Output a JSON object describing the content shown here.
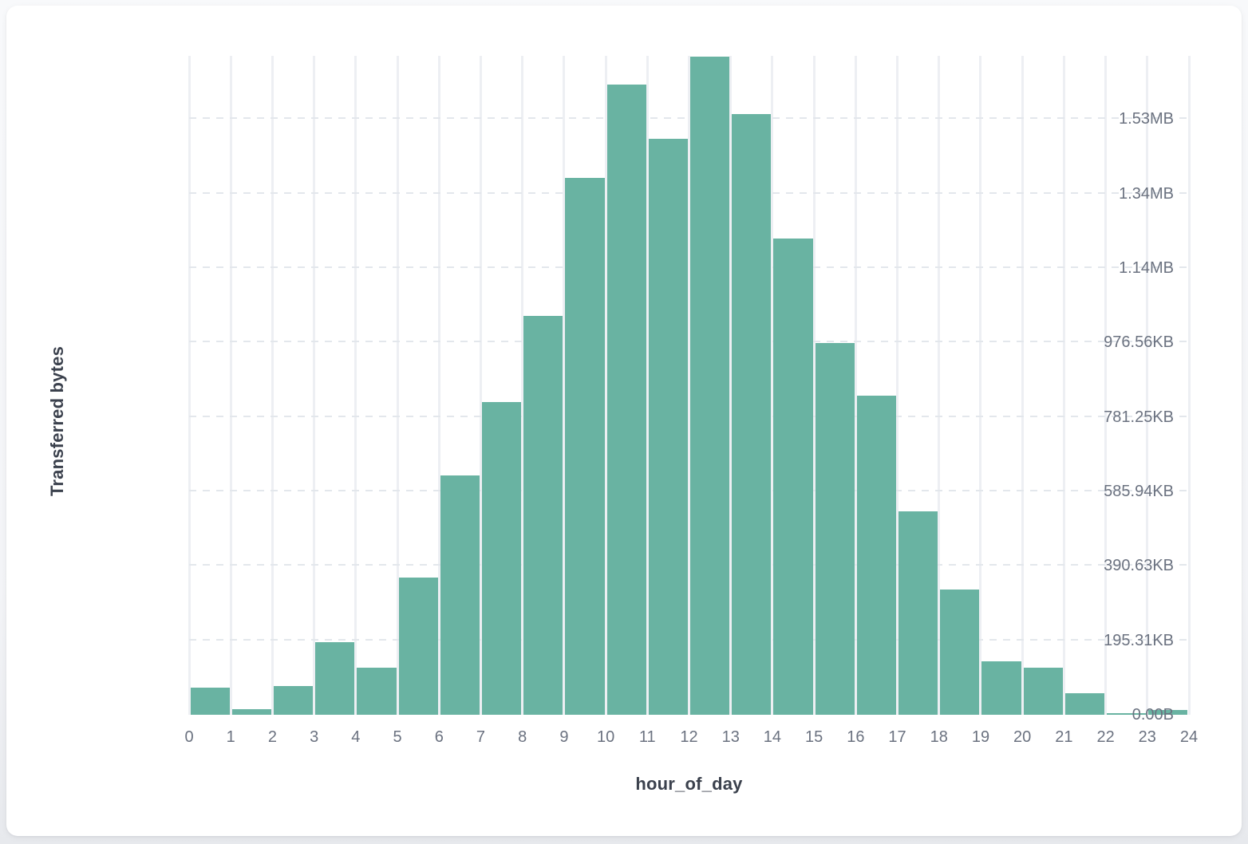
{
  "chart_data": {
    "type": "bar",
    "subtype": "histogram",
    "title": "",
    "xlabel": "hour_of_day",
    "ylabel": "Transferred bytes",
    "bin_edges_hours": [
      0,
      1,
      2,
      3,
      4,
      5,
      6,
      7,
      8,
      9,
      10,
      11,
      12,
      13,
      14,
      15,
      16,
      17,
      18,
      19,
      20,
      21,
      22,
      23,
      24
    ],
    "x_tick_labels": [
      "0",
      "1",
      "2",
      "3",
      "4",
      "5",
      "6",
      "7",
      "8",
      "9",
      "10",
      "11",
      "12",
      "13",
      "14",
      "15",
      "16",
      "17",
      "18",
      "19",
      "20",
      "21",
      "22",
      "23",
      "24"
    ],
    "series": [
      {
        "name": "Transferred bytes",
        "values_bytes": [
          73000,
          16000,
          78000,
          196000,
          126000,
          368000,
          642000,
          839000,
          1071000,
          1443000,
          1692000,
          1548000,
          1767000,
          1614000,
          1279000,
          998000,
          857000,
          546000,
          336000,
          143000,
          126000,
          58000,
          4000,
          13000
        ]
      }
    ],
    "y_ticks": [
      {
        "bytes": 0,
        "label": "0.00B"
      },
      {
        "bytes": 200000,
        "label": "195.31KB"
      },
      {
        "bytes": 400000,
        "label": "390.63KB"
      },
      {
        "bytes": 600000,
        "label": "585.94KB"
      },
      {
        "bytes": 800000,
        "label": "781.25KB"
      },
      {
        "bytes": 1000000,
        "label": "976.56KB"
      },
      {
        "bytes": 1200000,
        "label": "1.14MB"
      },
      {
        "bytes": 1400000,
        "label": "1.34MB"
      },
      {
        "bytes": 1600000,
        "label": "1.53MB"
      }
    ],
    "ylim_bytes": [
      0,
      1770000
    ],
    "grid": true,
    "legend_position": "none",
    "bar_color": "#69b3a2"
  }
}
